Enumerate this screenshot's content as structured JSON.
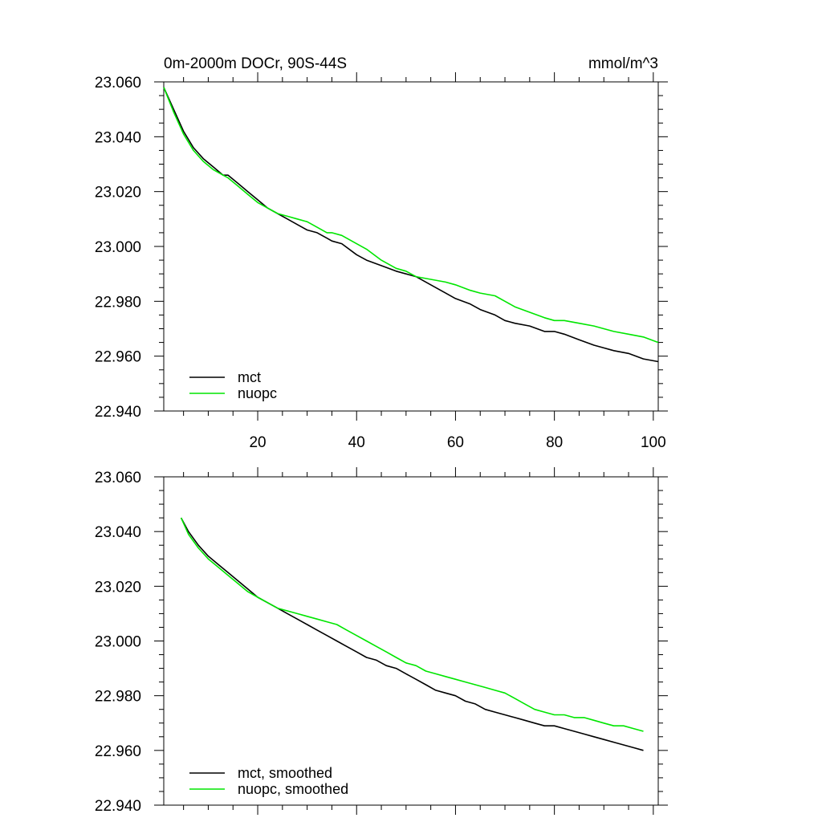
{
  "figure": {
    "title_left": "0m-2000m DOCr, 90S-44S",
    "title_right": "mmol/m^3"
  },
  "colors": {
    "mct": "#000000",
    "nuopc": "#00e600",
    "axes": "#000000"
  },
  "chart_data": [
    {
      "type": "line",
      "xlim": [
        1,
        101
      ],
      "ylim": [
        22.94,
        23.06
      ],
      "x_ticks": [
        20,
        40,
        60,
        80,
        100
      ],
      "y_ticks": [
        "23.060",
        "23.040",
        "23.020",
        "23.000",
        "22.980",
        "22.960",
        "22.940"
      ],
      "y_tick_values": [
        23.06,
        23.04,
        23.02,
        23.0,
        22.98,
        22.96,
        22.94
      ],
      "series": [
        {
          "name": "mct",
          "x": [
            1,
            3,
            5,
            7,
            9,
            11,
            13,
            14,
            16,
            18,
            20,
            22,
            24,
            26,
            28,
            30,
            32,
            34,
            35,
            37,
            40,
            42,
            45,
            48,
            50,
            52,
            55,
            58,
            60,
            63,
            65,
            68,
            70,
            72,
            75,
            78,
            80,
            82,
            85,
            88,
            90,
            92,
            95,
            98,
            101
          ],
          "y": [
            23.058,
            23.05,
            23.042,
            23.036,
            23.032,
            23.029,
            23.026,
            23.026,
            23.023,
            23.02,
            23.017,
            23.014,
            23.012,
            23.01,
            23.008,
            23.006,
            23.005,
            23.003,
            23.002,
            23.001,
            22.997,
            22.995,
            22.993,
            22.991,
            22.99,
            22.989,
            22.986,
            22.983,
            22.981,
            22.979,
            22.977,
            22.975,
            22.973,
            22.972,
            22.971,
            22.969,
            22.969,
            22.968,
            22.966,
            22.964,
            22.963,
            22.962,
            22.961,
            22.959,
            22.958
          ]
        },
        {
          "name": "nuopc",
          "x": [
            1,
            3,
            5,
            7,
            9,
            11,
            13,
            14,
            16,
            18,
            20,
            22,
            24,
            26,
            28,
            30,
            32,
            34,
            35,
            37,
            40,
            42,
            45,
            48,
            50,
            52,
            55,
            58,
            60,
            63,
            65,
            68,
            70,
            72,
            75,
            78,
            80,
            82,
            85,
            88,
            90,
            92,
            95,
            98,
            101
          ],
          "y": [
            23.058,
            23.049,
            23.041,
            23.035,
            23.031,
            23.028,
            23.026,
            23.025,
            23.022,
            23.019,
            23.016,
            23.014,
            23.012,
            23.011,
            23.01,
            23.009,
            23.007,
            23.005,
            23.005,
            23.004,
            23.001,
            22.999,
            22.995,
            22.992,
            22.991,
            22.989,
            22.988,
            22.987,
            22.986,
            22.984,
            22.983,
            22.982,
            22.98,
            22.978,
            22.976,
            22.974,
            22.973,
            22.973,
            22.972,
            22.971,
            22.97,
            22.969,
            22.968,
            22.967,
            22.965
          ]
        }
      ]
    },
    {
      "type": "line",
      "xlim": [
        1,
        101
      ],
      "ylim": [
        22.94,
        23.06
      ],
      "y_ticks": [
        "23.060",
        "23.040",
        "23.020",
        "23.000",
        "22.980",
        "22.960",
        "22.940"
      ],
      "y_tick_values": [
        23.06,
        23.04,
        23.02,
        23.0,
        22.98,
        22.96,
        22.94
      ],
      "series": [
        {
          "name": "mct, smoothed",
          "x": [
            4.5,
            6,
            8,
            10,
            12,
            14,
            16,
            18,
            20,
            22,
            24,
            26,
            28,
            30,
            32,
            34,
            36,
            38,
            40,
            42,
            44,
            46,
            48,
            50,
            52,
            54,
            56,
            58,
            60,
            62,
            64,
            66,
            68,
            70,
            72,
            74,
            76,
            78,
            80,
            82,
            84,
            86,
            88,
            90,
            92,
            94,
            96,
            98
          ],
          "y": [
            23.045,
            23.04,
            23.035,
            23.031,
            23.028,
            23.025,
            23.022,
            23.019,
            23.016,
            23.014,
            23.012,
            23.01,
            23.008,
            23.006,
            23.004,
            23.002,
            23.0,
            22.998,
            22.996,
            22.994,
            22.993,
            22.991,
            22.99,
            22.988,
            22.986,
            22.984,
            22.982,
            22.981,
            22.98,
            22.978,
            22.977,
            22.975,
            22.974,
            22.973,
            22.972,
            22.971,
            22.97,
            22.969,
            22.969,
            22.968,
            22.967,
            22.966,
            22.965,
            22.964,
            22.963,
            22.962,
            22.961,
            22.96
          ]
        },
        {
          "name": "nuopc, smoothed",
          "x": [
            4.5,
            6,
            8,
            10,
            12,
            14,
            16,
            18,
            20,
            22,
            24,
            26,
            28,
            30,
            32,
            34,
            36,
            38,
            40,
            42,
            44,
            46,
            48,
            50,
            52,
            54,
            56,
            58,
            60,
            62,
            64,
            66,
            68,
            70,
            72,
            74,
            76,
            78,
            80,
            82,
            84,
            86,
            88,
            90,
            92,
            94,
            96,
            98
          ],
          "y": [
            23.045,
            23.039,
            23.034,
            23.03,
            23.027,
            23.024,
            23.021,
            23.018,
            23.016,
            23.014,
            23.012,
            23.011,
            23.01,
            23.009,
            23.008,
            23.007,
            23.006,
            23.004,
            23.002,
            23.0,
            22.998,
            22.996,
            22.994,
            22.992,
            22.991,
            22.989,
            22.988,
            22.987,
            22.986,
            22.985,
            22.984,
            22.983,
            22.982,
            22.981,
            22.979,
            22.977,
            22.975,
            22.974,
            22.973,
            22.973,
            22.972,
            22.972,
            22.971,
            22.97,
            22.969,
            22.969,
            22.968,
            22.967
          ]
        }
      ]
    }
  ]
}
